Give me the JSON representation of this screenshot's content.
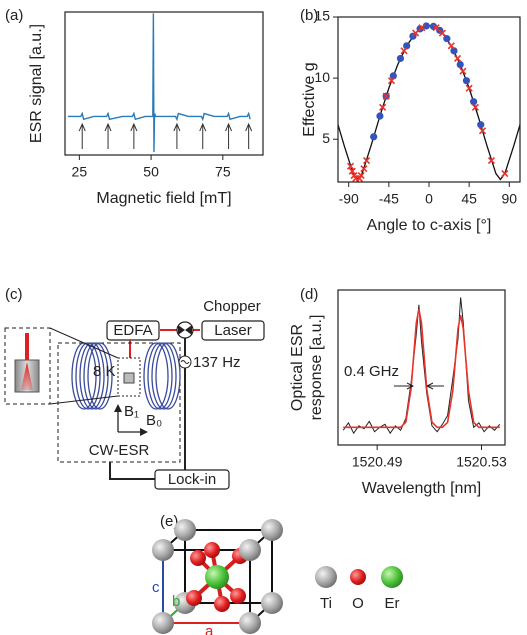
{
  "chart_data": [
    {
      "type": "line",
      "panel": "(a)",
      "xlabel": "Magnetic field [mT]",
      "ylabel": "ESR signal [a.u.]",
      "xlim": [
        20,
        89
      ],
      "xticks": [
        25,
        50,
        75
      ],
      "ylim": [
        0,
        1
      ],
      "color": "#2a7ab9",
      "x": [
        21,
        25.5,
        26,
        26.5,
        30,
        34.5,
        35,
        35.5,
        40,
        43.5,
        44,
        44.5,
        48,
        50.6,
        50.8,
        51.0,
        51.2,
        51.6,
        54,
        58.5,
        59,
        59.5,
        63,
        67.5,
        68,
        68.5,
        72,
        76.5,
        77,
        77.5,
        81,
        83.5,
        84,
        84.5
      ],
      "values": [
        0.27,
        0.27,
        0.29,
        0.25,
        0.27,
        0.27,
        0.29,
        0.25,
        0.27,
        0.27,
        0.29,
        0.25,
        0.27,
        0.27,
        0.99,
        0.02,
        0.29,
        0.27,
        0.27,
        0.27,
        0.25,
        0.29,
        0.27,
        0.27,
        0.25,
        0.29,
        0.27,
        0.27,
        0.29,
        0.25,
        0.27,
        0.27,
        0.29,
        0.25
      ],
      "arrows_x": [
        26,
        35,
        44,
        59,
        68,
        77,
        84
      ]
    },
    {
      "type": "scatter",
      "panel": "(b)",
      "xlabel": "Angle to c-axis [°]",
      "ylabel": "Effective g",
      "xlim": [
        -102,
        102
      ],
      "xticks": [
        -90,
        -45,
        0,
        45,
        90
      ],
      "ylim": [
        1.5,
        15
      ],
      "yticks": [
        5,
        10,
        15
      ],
      "curve": {
        "color": "#111111",
        "x": [
          -102,
          -95,
          -85,
          -80,
          -75,
          -65,
          -55,
          -45,
          -35,
          -25,
          -15,
          -5,
          0,
          5,
          15,
          25,
          35,
          45,
          55,
          65,
          75,
          80,
          85,
          95,
          102
        ],
        "values": [
          6.19,
          4.46,
          2.19,
          1.7,
          2.19,
          4.46,
          6.9,
          9.18,
          11.11,
          12.64,
          13.69,
          14.23,
          14.3,
          14.23,
          13.69,
          12.64,
          11.11,
          9.18,
          6.9,
          4.46,
          2.19,
          1.7,
          2.19,
          4.46,
          6.19
        ]
      },
      "series": [
        {
          "marker": "dot",
          "color": "#3355bb",
          "x": [
            -62,
            -55,
            -48,
            -40,
            -32,
            -25,
            -18,
            -10,
            -3,
            5,
            12,
            20,
            28,
            35,
            42,
            50,
            58
          ],
          "values": [
            5.2,
            6.9,
            8.52,
            10.18,
            11.61,
            12.64,
            13.43,
            14.03,
            14.27,
            14.23,
            13.91,
            13.23,
            12.23,
            11.11,
            9.79,
            8.07,
            6.19
          ]
        },
        {
          "marker": "cross",
          "color": "#e8322a",
          "x": [
            -88,
            -86,
            -84,
            -82,
            -78,
            -76,
            -73,
            -70,
            -52,
            -48,
            -42,
            -28,
            -15,
            -8,
            8,
            15,
            25,
            32,
            38,
            45,
            52,
            60,
            70,
            85
          ],
          "values": [
            2.79,
            2.38,
            2.03,
            1.79,
            1.79,
            2.03,
            2.59,
            3.25,
            7.61,
            8.52,
            9.79,
            12.23,
            13.69,
            14.13,
            14.13,
            13.69,
            12.64,
            11.61,
            10.57,
            9.18,
            7.61,
            5.69,
            3.25,
            2.19
          ]
        }
      ]
    },
    {
      "type": "line",
      "panel": "(d)",
      "xlabel": "Wavelength [nm]",
      "ylabel": [
        "Optical ESR",
        "response [a.u.]"
      ],
      "xlim": [
        1520.475,
        1520.539
      ],
      "xticks": [
        1520.49,
        1520.53
      ],
      "ylim": [
        0,
        1.05
      ],
      "annotation": "0.4 GHz",
      "x": [
        1520.477,
        1520.479,
        1520.481,
        1520.483,
        1520.485,
        1520.487,
        1520.489,
        1520.491,
        1520.493,
        1520.495,
        1520.497,
        1520.499,
        1520.501,
        1520.503,
        1520.505,
        1520.506,
        1520.507,
        1520.509,
        1520.511,
        1520.513,
        1520.515,
        1520.517,
        1520.519,
        1520.521,
        1520.522,
        1520.523,
        1520.525,
        1520.527,
        1520.529,
        1520.531,
        1520.533,
        1520.535,
        1520.537
      ],
      "series": [
        {
          "color": "#222222",
          "values": [
            0.1,
            0.15,
            0.08,
            0.13,
            0.11,
            0.16,
            0.09,
            0.12,
            0.14,
            0.08,
            0.13,
            0.1,
            0.18,
            0.42,
            0.75,
            0.95,
            0.7,
            0.35,
            0.13,
            0.09,
            0.14,
            0.2,
            0.45,
            0.72,
            1.0,
            0.83,
            0.3,
            0.12,
            0.15,
            0.09,
            0.13,
            0.1,
            0.14
          ]
        },
        {
          "color": "#e8322a",
          "values": [
            0.12,
            0.12,
            0.12,
            0.12,
            0.12,
            0.12,
            0.12,
            0.12,
            0.12,
            0.12,
            0.12,
            0.12,
            0.155,
            0.38,
            0.826,
            0.92,
            0.826,
            0.38,
            0.155,
            0.12,
            0.12,
            0.153,
            0.367,
            0.79,
            0.88,
            0.79,
            0.367,
            0.153,
            0.12,
            0.12,
            0.12,
            0.12,
            0.12
          ]
        }
      ]
    }
  ],
  "diagram_c": {
    "panel": "(c)",
    "chopper": "Chopper",
    "edfa": "EDFA",
    "laser": "Laser",
    "temperature": "8 K",
    "frequency": "137 Hz",
    "b1": "B₁",
    "b0": "B₀",
    "cw_esr": "CW-ESR",
    "lock_in": "Lock-in"
  },
  "crystal_e": {
    "panel": "(e)",
    "axis_c": "c",
    "axis_b": "b",
    "axis_a": "a",
    "legend": [
      "Ti",
      "O",
      "Er"
    ]
  }
}
